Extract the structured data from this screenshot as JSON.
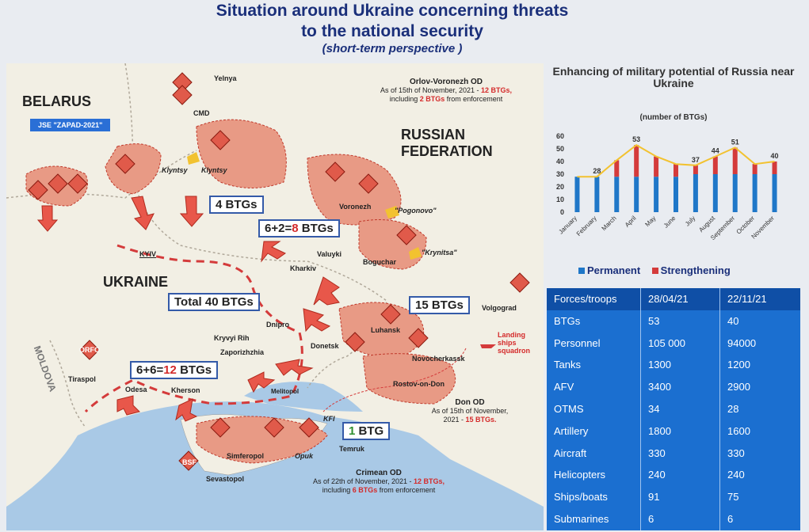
{
  "title": {
    "line1": "Situation around Ukraine concerning threats",
    "line2": "to the national security",
    "line3": "(short-term perspective )"
  },
  "map": {
    "countries": {
      "belarus": "BELARUS",
      "russia_1": "RUSSIAN",
      "russia_2": "FEDERATION",
      "ukraine": "UKRAINE",
      "moldova": "MOLDOVA"
    },
    "jse": "JSE \"ZAPAD-2021\"",
    "cities": {
      "yelnya": "Yelnya",
      "cmd": "CMD",
      "klyntsy1": "Klyntsy",
      "klyntsy2": "Klyntsy",
      "voronezh": "Voronezh",
      "pogonovo": "\"Pogonovo\"",
      "valuyki": "Valuyki",
      "boguchar": "Boguchar",
      "krynitsa": "\"Krynitsa\"",
      "kharkiv": "Kharkiv",
      "kyiv": "KYIV",
      "dnipro": "Dnipro",
      "kryvyi": "Kryvyi Rih",
      "zaporizhzhia": "Zaporizhzhia",
      "donetsk": "Donetsk",
      "luhansk": "Luhansk",
      "volgograd": "Volgograd",
      "novocherkassk": "Novocherkassk",
      "rostov": "Rostov-on-Don",
      "odesa": "Odesa",
      "kherson": "Kherson",
      "melitopol": "Melitopol",
      "tiraspol": "Tiraspol",
      "simferopol": "Simferopol",
      "sevastopol": "Sevastopol",
      "opuk": "Opuk",
      "temruk": "Temruk",
      "kfi": "KFI",
      "orfo": "ORFO",
      "bsf": "BSF",
      "landing": "Landing ships squadron"
    },
    "boxes": {
      "b4": "4 BTGs",
      "b8_a": "6+2=",
      "b8_b": "8",
      "b8_c": " BTGs",
      "total": "Total 40 BTGs",
      "b15": "15 BTGs",
      "b12_a": "6+6=",
      "b12_b": "12",
      "b12_c": " BTGs",
      "b1_a": "1",
      "b1_b": " BTG"
    },
    "notes": {
      "orlov_title": "Orlov-Voronezh OD",
      "orlov_1": "As of 15th of November, 2021 - ",
      "orlov_1r": "12 BTGs,",
      "orlov_2": "including ",
      "orlov_2r": "2 BTGs",
      "orlov_3": " from enforcement",
      "don_title": "Don OD",
      "don_1": "As of 15th of November,",
      "don_2": "2021 - ",
      "don_2r": "15 BTGs.",
      "crimea_title": "Crimean OD",
      "crimea_1": "As of 22th of November, 2021 - ",
      "crimea_1r": "12 BTGs,",
      "crimea_2": "including ",
      "crimea_2r": "6 BTGs",
      "crimea_3": " from enforcement"
    }
  },
  "chart_data": {
    "type": "bar",
    "title": "Enhancing of military potential of Russia near Ukraine",
    "subtitle": "(number of BTGs)",
    "categories": [
      "January",
      "February",
      "March",
      "April",
      "May",
      "June",
      "July",
      "August",
      "September",
      "October",
      "November"
    ],
    "series": [
      {
        "name": "Permanent",
        "color": "#1f77c8",
        "values": [
          28,
          28,
          28,
          28,
          28,
          28,
          30,
          30,
          30,
          30,
          30
        ]
      },
      {
        "name": "Strengthening",
        "color": "#d43b3b",
        "values": [
          0,
          0,
          13,
          25,
          16,
          10,
          7,
          14,
          21,
          8,
          10
        ]
      }
    ],
    "totals": [
      28,
      28,
      41,
      53,
      44,
      38,
      37,
      44,
      51,
      38,
      40
    ],
    "labels": {
      "1": "28",
      "3": "53",
      "6": "37",
      "7": "44",
      "8": "51",
      "10": "40"
    },
    "ylim": [
      0,
      60
    ],
    "yticks": [
      0,
      10,
      20,
      30,
      40,
      50,
      60
    ],
    "trend_color": "#f2c230"
  },
  "legend": {
    "permanent": "Permanent",
    "strengthening": "Strengthening",
    "permanent_color": "#1f77c8",
    "strengthening_color": "#d43b3b"
  },
  "table": {
    "header": [
      "Forces/troops",
      "28/04/21",
      "22/11/21"
    ],
    "rows": [
      [
        "BTGs",
        "53",
        "40"
      ],
      [
        "Personnel",
        "105 000",
        "94000"
      ],
      [
        "Tanks",
        "1300",
        "1200"
      ],
      [
        "AFV",
        "3400",
        "2900"
      ],
      [
        "OTMS",
        "34",
        "28"
      ],
      [
        "Artillery",
        "1800",
        "1600"
      ],
      [
        "Aircraft",
        "330",
        "330"
      ],
      [
        "Helicopters",
        "240",
        "240"
      ],
      [
        "Ships/boats",
        "91",
        "75"
      ],
      [
        "Submarines",
        "6",
        "6"
      ]
    ]
  }
}
